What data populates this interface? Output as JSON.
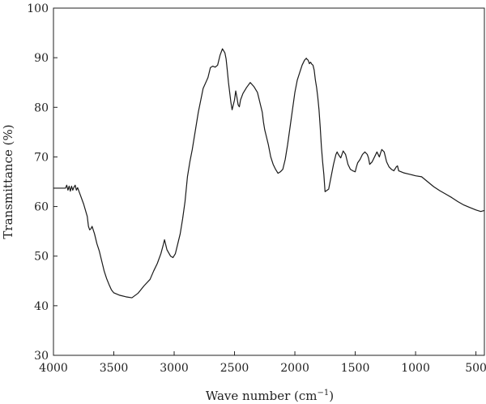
{
  "chart_data": {
    "type": "line",
    "title": "",
    "xlabel_main": "Wave number (cm",
    "xlabel_sup": "−1",
    "xlabel_end": ")",
    "ylabel": "Transmittance (%)",
    "xlim": [
      4000,
      430
    ],
    "ylim": [
      30,
      100
    ],
    "x_reversed": true,
    "x_ticks": [
      4000,
      3500,
      3000,
      2500,
      2000,
      1500,
      1000,
      500
    ],
    "y_ticks": [
      30,
      40,
      50,
      60,
      70,
      80,
      90,
      100
    ],
    "grid": false,
    "line_color": "#1a1a1a",
    "series": [
      {
        "x": [
          4000,
          3900,
          3890,
          3880,
          3870,
          3860,
          3850,
          3840,
          3830,
          3820,
          3810,
          3800,
          3780,
          3750,
          3720,
          3710,
          3700,
          3690,
          3680,
          3660,
          3640,
          3620,
          3600,
          3580,
          3560,
          3540,
          3520,
          3500,
          3450,
          3400,
          3350,
          3300,
          3250,
          3200,
          3170,
          3140,
          3110,
          3090,
          3080,
          3060,
          3030,
          3010,
          2990,
          2970,
          2950,
          2930,
          2910,
          2890,
          2870,
          2850,
          2820,
          2800,
          2760,
          2720,
          2700,
          2680,
          2660,
          2640,
          2620,
          2600,
          2580,
          2570,
          2560,
          2550,
          2540,
          2530,
          2520,
          2500,
          2490,
          2480,
          2470,
          2460,
          2450,
          2430,
          2400,
          2370,
          2340,
          2310,
          2290,
          2270,
          2260,
          2250,
          2240,
          2220,
          2200,
          2180,
          2160,
          2140,
          2120,
          2100,
          2080,
          2060,
          2040,
          2020,
          2000,
          1980,
          1960,
          1940,
          1920,
          1905,
          1900,
          1890,
          1880,
          1870,
          1860,
          1850,
          1840,
          1830,
          1820,
          1810,
          1800,
          1790,
          1780,
          1770,
          1760,
          1750,
          1720,
          1700,
          1680,
          1660,
          1650,
          1640,
          1620,
          1600,
          1580,
          1560,
          1540,
          1520,
          1500,
          1490,
          1480,
          1460,
          1440,
          1420,
          1400,
          1390,
          1380,
          1360,
          1340,
          1320,
          1300,
          1290,
          1280,
          1260,
          1240,
          1220,
          1200,
          1180,
          1160,
          1150,
          1140,
          1100,
          1050,
          1000,
          950,
          900,
          850,
          800,
          750,
          700,
          650,
          600,
          550,
          500,
          460,
          430
        ],
        "y": [
          63.7,
          63.7,
          64.3,
          63.3,
          64.1,
          63.1,
          64.1,
          63.3,
          63.9,
          64.3,
          63.3,
          63.8,
          62.5,
          60.5,
          58.0,
          56.0,
          55.3,
          55.5,
          56.0,
          54.5,
          52.5,
          51.0,
          49.0,
          47.0,
          45.5,
          44.3,
          43.2,
          42.6,
          42.1,
          41.8,
          41.6,
          42.5,
          44.0,
          45.3,
          47.0,
          48.5,
          50.5,
          52.3,
          53.3,
          51.3,
          50.0,
          49.7,
          50.5,
          52.5,
          54.5,
          57.5,
          61.0,
          66.0,
          69.0,
          71.5,
          76.0,
          79.0,
          83.8,
          86.0,
          88.0,
          88.3,
          88.1,
          88.5,
          90.5,
          91.8,
          91.0,
          89.8,
          87.5,
          85.0,
          83.0,
          81.0,
          79.5,
          81.5,
          83.3,
          82.0,
          80.5,
          80.1,
          81.5,
          82.8,
          84.0,
          85.0,
          84.2,
          83.0,
          81.0,
          79.0,
          77.0,
          75.5,
          74.5,
          72.5,
          70.0,
          68.5,
          67.5,
          66.7,
          67.0,
          67.5,
          69.5,
          72.5,
          76.0,
          79.5,
          83.0,
          85.5,
          87.0,
          88.5,
          89.5,
          89.9,
          89.7,
          89.5,
          88.8,
          89.1,
          88.7,
          88.5,
          87.5,
          85.5,
          84.0,
          82.0,
          79.5,
          76.0,
          72.0,
          69.0,
          66.5,
          63.0,
          63.5,
          66.0,
          68.5,
          70.5,
          71.0,
          70.5,
          69.8,
          71.2,
          70.5,
          68.5,
          67.5,
          67.2,
          67.0,
          68.0,
          68.8,
          69.5,
          70.5,
          71.0,
          70.5,
          69.8,
          68.5,
          69.0,
          70.0,
          71.0,
          70.0,
          70.8,
          71.5,
          71.0,
          69.0,
          68.0,
          67.5,
          67.2,
          68.0,
          68.2,
          67.2,
          66.8,
          66.5,
          66.2,
          66.0,
          65.0,
          64.0,
          63.2,
          62.5,
          61.8,
          61.0,
          60.3,
          59.8,
          59.3,
          59.0,
          59.2
        ]
      }
    ]
  }
}
